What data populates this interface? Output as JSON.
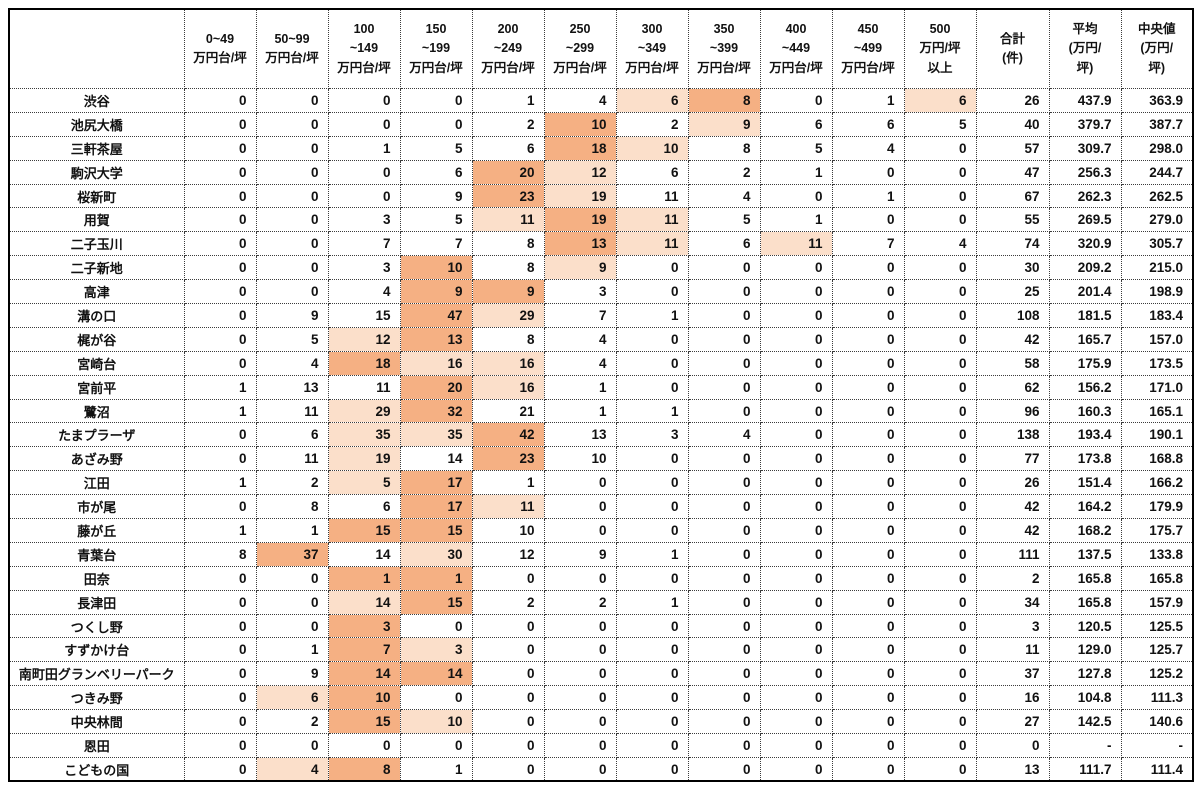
{
  "table": {
    "corner_label": "",
    "column_headers": [
      "0~49\n万円台/坪",
      "50~99\n万円台/坪",
      "100\n~149\n万円台/坪",
      "150\n~199\n万円台/坪",
      "200\n~249\n万円台/坪",
      "250\n~299\n万円台/坪",
      "300\n~349\n万円台/坪",
      "350\n~399\n万円台/坪",
      "400\n~449\n万円台/坪",
      "450\n~499\n万円台/坪",
      "500\n万円/坪\n以上",
      "合計\n(件)",
      "平均\n(万円/\n坪)",
      "中央値\n(万円/\n坪)"
    ],
    "colors": {
      "highlight_dark": "#F5B083",
      "highlight_light": "#FBDFCA",
      "grid_border": "#3c3c3c",
      "outer_border": "#000000"
    },
    "fill_legend": {
      "0": "none",
      "1": "light",
      "2": "dark"
    },
    "rows": [
      {
        "station": "渋谷",
        "bins": [
          0,
          0,
          0,
          0,
          1,
          4,
          6,
          8,
          0,
          1,
          6
        ],
        "fills": [
          0,
          0,
          0,
          0,
          0,
          0,
          1,
          2,
          0,
          0,
          1
        ],
        "total": "26",
        "mean": "437.9",
        "median": "363.9"
      },
      {
        "station": "池尻大橋",
        "bins": [
          0,
          0,
          0,
          0,
          2,
          10,
          2,
          9,
          6,
          6,
          5
        ],
        "fills": [
          0,
          0,
          0,
          0,
          0,
          2,
          0,
          1,
          0,
          0,
          0
        ],
        "total": "40",
        "mean": "379.7",
        "median": "387.7"
      },
      {
        "station": "三軒茶屋",
        "bins": [
          0,
          0,
          1,
          5,
          6,
          18,
          10,
          8,
          5,
          4,
          0
        ],
        "fills": [
          0,
          0,
          0,
          0,
          0,
          2,
          1,
          0,
          0,
          0,
          0
        ],
        "total": "57",
        "mean": "309.7",
        "median": "298.0"
      },
      {
        "station": "駒沢大学",
        "bins": [
          0,
          0,
          0,
          6,
          20,
          12,
          6,
          2,
          1,
          0,
          0
        ],
        "fills": [
          0,
          0,
          0,
          0,
          2,
          1,
          0,
          0,
          0,
          0,
          0
        ],
        "total": "47",
        "mean": "256.3",
        "median": "244.7"
      },
      {
        "station": "桜新町",
        "bins": [
          0,
          0,
          0,
          9,
          23,
          19,
          11,
          4,
          0,
          1,
          0
        ],
        "fills": [
          0,
          0,
          0,
          0,
          2,
          1,
          0,
          0,
          0,
          0,
          0
        ],
        "total": "67",
        "mean": "262.3",
        "median": "262.5"
      },
      {
        "station": "用賀",
        "bins": [
          0,
          0,
          3,
          5,
          11,
          19,
          11,
          5,
          1,
          0,
          0
        ],
        "fills": [
          0,
          0,
          0,
          0,
          1,
          2,
          1,
          0,
          0,
          0,
          0
        ],
        "total": "55",
        "mean": "269.5",
        "median": "279.0"
      },
      {
        "station": "二子玉川",
        "bins": [
          0,
          0,
          7,
          7,
          8,
          13,
          11,
          6,
          11,
          7,
          4
        ],
        "fills": [
          0,
          0,
          0,
          0,
          0,
          2,
          1,
          0,
          1,
          0,
          0
        ],
        "total": "74",
        "mean": "320.9",
        "median": "305.7"
      },
      {
        "station": "二子新地",
        "bins": [
          0,
          0,
          3,
          10,
          8,
          9,
          0,
          0,
          0,
          0,
          0
        ],
        "fills": [
          0,
          0,
          0,
          2,
          0,
          1,
          0,
          0,
          0,
          0,
          0
        ],
        "total": "30",
        "mean": "209.2",
        "median": "215.0"
      },
      {
        "station": "高津",
        "bins": [
          0,
          0,
          4,
          9,
          9,
          3,
          0,
          0,
          0,
          0,
          0
        ],
        "fills": [
          0,
          0,
          0,
          2,
          2,
          0,
          0,
          0,
          0,
          0,
          0
        ],
        "total": "25",
        "mean": "201.4",
        "median": "198.9"
      },
      {
        "station": "溝の口",
        "bins": [
          0,
          9,
          15,
          47,
          29,
          7,
          1,
          0,
          0,
          0,
          0
        ],
        "fills": [
          0,
          0,
          0,
          2,
          1,
          0,
          0,
          0,
          0,
          0,
          0
        ],
        "total": "108",
        "mean": "181.5",
        "median": "183.4"
      },
      {
        "station": "梶が谷",
        "bins": [
          0,
          5,
          12,
          13,
          8,
          4,
          0,
          0,
          0,
          0,
          0
        ],
        "fills": [
          0,
          0,
          1,
          2,
          0,
          0,
          0,
          0,
          0,
          0,
          0
        ],
        "total": "42",
        "mean": "165.7",
        "median": "157.0"
      },
      {
        "station": "宮崎台",
        "bins": [
          0,
          4,
          18,
          16,
          16,
          4,
          0,
          0,
          0,
          0,
          0
        ],
        "fills": [
          0,
          0,
          2,
          1,
          1,
          0,
          0,
          0,
          0,
          0,
          0
        ],
        "total": "58",
        "mean": "175.9",
        "median": "173.5"
      },
      {
        "station": "宮前平",
        "bins": [
          1,
          13,
          11,
          20,
          16,
          1,
          0,
          0,
          0,
          0,
          0
        ],
        "fills": [
          0,
          0,
          0,
          2,
          1,
          0,
          0,
          0,
          0,
          0,
          0
        ],
        "total": "62",
        "mean": "156.2",
        "median": "171.0"
      },
      {
        "station": "鷺沼",
        "bins": [
          1,
          11,
          29,
          32,
          21,
          1,
          1,
          0,
          0,
          0,
          0
        ],
        "fills": [
          0,
          0,
          1,
          2,
          0,
          0,
          0,
          0,
          0,
          0,
          0
        ],
        "total": "96",
        "mean": "160.3",
        "median": "165.1"
      },
      {
        "station": "たまプラーザ",
        "bins": [
          0,
          6,
          35,
          35,
          42,
          13,
          3,
          4,
          0,
          0,
          0
        ],
        "fills": [
          0,
          0,
          1,
          1,
          2,
          0,
          0,
          0,
          0,
          0,
          0
        ],
        "total": "138",
        "mean": "193.4",
        "median": "190.1"
      },
      {
        "station": "あざみ野",
        "bins": [
          0,
          11,
          19,
          14,
          23,
          10,
          0,
          0,
          0,
          0,
          0
        ],
        "fills": [
          0,
          0,
          1,
          0,
          2,
          0,
          0,
          0,
          0,
          0,
          0
        ],
        "total": "77",
        "mean": "173.8",
        "median": "168.8"
      },
      {
        "station": "江田",
        "bins": [
          1,
          2,
          5,
          17,
          1,
          0,
          0,
          0,
          0,
          0,
          0
        ],
        "fills": [
          0,
          0,
          1,
          2,
          0,
          0,
          0,
          0,
          0,
          0,
          0
        ],
        "total": "26",
        "mean": "151.4",
        "median": "166.2"
      },
      {
        "station": "市が尾",
        "bins": [
          0,
          8,
          6,
          17,
          11,
          0,
          0,
          0,
          0,
          0,
          0
        ],
        "fills": [
          0,
          0,
          0,
          2,
          1,
          0,
          0,
          0,
          0,
          0,
          0
        ],
        "total": "42",
        "mean": "164.2",
        "median": "179.9"
      },
      {
        "station": "藤が丘",
        "bins": [
          1,
          1,
          15,
          15,
          10,
          0,
          0,
          0,
          0,
          0,
          0
        ],
        "fills": [
          0,
          0,
          2,
          2,
          0,
          0,
          0,
          0,
          0,
          0,
          0
        ],
        "total": "42",
        "mean": "168.2",
        "median": "175.7"
      },
      {
        "station": "青葉台",
        "bins": [
          8,
          37,
          14,
          30,
          12,
          9,
          1,
          0,
          0,
          0,
          0
        ],
        "fills": [
          0,
          2,
          0,
          1,
          0,
          0,
          0,
          0,
          0,
          0,
          0
        ],
        "total": "111",
        "mean": "137.5",
        "median": "133.8"
      },
      {
        "station": "田奈",
        "bins": [
          0,
          0,
          1,
          1,
          0,
          0,
          0,
          0,
          0,
          0,
          0
        ],
        "fills": [
          0,
          0,
          2,
          2,
          0,
          0,
          0,
          0,
          0,
          0,
          0
        ],
        "total": "2",
        "mean": "165.8",
        "median": "165.8"
      },
      {
        "station": "長津田",
        "bins": [
          0,
          0,
          14,
          15,
          2,
          2,
          1,
          0,
          0,
          0,
          0
        ],
        "fills": [
          0,
          0,
          1,
          2,
          0,
          0,
          0,
          0,
          0,
          0,
          0
        ],
        "total": "34",
        "mean": "165.8",
        "median": "157.9"
      },
      {
        "station": "つくし野",
        "bins": [
          0,
          0,
          3,
          0,
          0,
          0,
          0,
          0,
          0,
          0,
          0
        ],
        "fills": [
          0,
          0,
          2,
          0,
          0,
          0,
          0,
          0,
          0,
          0,
          0
        ],
        "total": "3",
        "mean": "120.5",
        "median": "125.5"
      },
      {
        "station": "すずかけ台",
        "bins": [
          0,
          1,
          7,
          3,
          0,
          0,
          0,
          0,
          0,
          0,
          0
        ],
        "fills": [
          0,
          0,
          2,
          1,
          0,
          0,
          0,
          0,
          0,
          0,
          0
        ],
        "total": "11",
        "mean": "129.0",
        "median": "125.7"
      },
      {
        "station": "南町田グランベリーパーク",
        "bins": [
          0,
          9,
          14,
          14,
          0,
          0,
          0,
          0,
          0,
          0,
          0
        ],
        "fills": [
          0,
          0,
          2,
          2,
          0,
          0,
          0,
          0,
          0,
          0,
          0
        ],
        "total": "37",
        "mean": "127.8",
        "median": "125.2"
      },
      {
        "station": "つきみ野",
        "bins": [
          0,
          6,
          10,
          0,
          0,
          0,
          0,
          0,
          0,
          0,
          0
        ],
        "fills": [
          0,
          1,
          2,
          0,
          0,
          0,
          0,
          0,
          0,
          0,
          0
        ],
        "total": "16",
        "mean": "104.8",
        "median": "111.3"
      },
      {
        "station": "中央林間",
        "bins": [
          0,
          2,
          15,
          10,
          0,
          0,
          0,
          0,
          0,
          0,
          0
        ],
        "fills": [
          0,
          0,
          2,
          1,
          0,
          0,
          0,
          0,
          0,
          0,
          0
        ],
        "total": "27",
        "mean": "142.5",
        "median": "140.6"
      },
      {
        "station": "恩田",
        "bins": [
          0,
          0,
          0,
          0,
          0,
          0,
          0,
          0,
          0,
          0,
          0
        ],
        "fills": [
          0,
          0,
          0,
          0,
          0,
          0,
          0,
          0,
          0,
          0,
          0
        ],
        "total": "0",
        "mean": "-",
        "median": "-"
      },
      {
        "station": "こどもの国",
        "bins": [
          0,
          4,
          8,
          1,
          0,
          0,
          0,
          0,
          0,
          0,
          0
        ],
        "fills": [
          0,
          1,
          2,
          0,
          0,
          0,
          0,
          0,
          0,
          0,
          0
        ],
        "total": "13",
        "mean": "111.7",
        "median": "111.4"
      }
    ]
  }
}
